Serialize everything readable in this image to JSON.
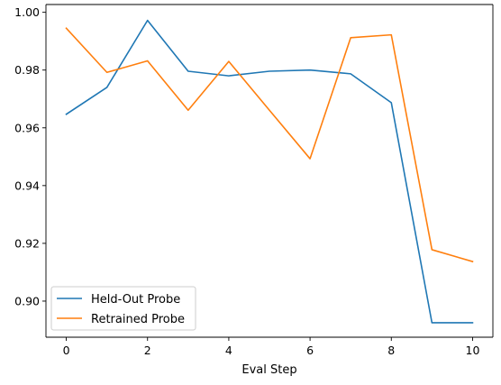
{
  "chart_data": {
    "type": "line",
    "title": "",
    "xlabel": "Eval Step",
    "ylabel": "",
    "x": [
      0,
      1,
      2,
      3,
      4,
      5,
      6,
      7,
      8,
      9,
      10
    ],
    "xlim": [
      -0.5,
      10.5
    ],
    "ylim": [
      0.8875,
      1.0027
    ],
    "xticks": [
      0,
      2,
      4,
      6,
      8,
      10
    ],
    "yticks": [
      0.9,
      0.92,
      0.94,
      0.96,
      0.98,
      1.0
    ],
    "xtick_labels": [
      "0",
      "2",
      "4",
      "6",
      "8",
      "10"
    ],
    "ytick_labels": [
      "0.90",
      "0.92",
      "0.94",
      "0.96",
      "0.98",
      "1.00"
    ],
    "grid": false,
    "legend_position": "lower-left",
    "series": [
      {
        "name": "Held-Out Probe",
        "color": "#1f77b4",
        "values": [
          0.9647,
          0.974,
          0.9972,
          0.9796,
          0.978,
          0.9796,
          0.98,
          0.9787,
          0.9687,
          0.8925,
          0.8925
        ]
      },
      {
        "name": "Retrained Probe",
        "color": "#ff7f0e",
        "values": [
          0.9945,
          0.9792,
          0.9832,
          0.9661,
          0.983,
          0.9661,
          0.9493,
          0.9912,
          0.9922,
          0.9178,
          0.9137
        ]
      }
    ]
  }
}
